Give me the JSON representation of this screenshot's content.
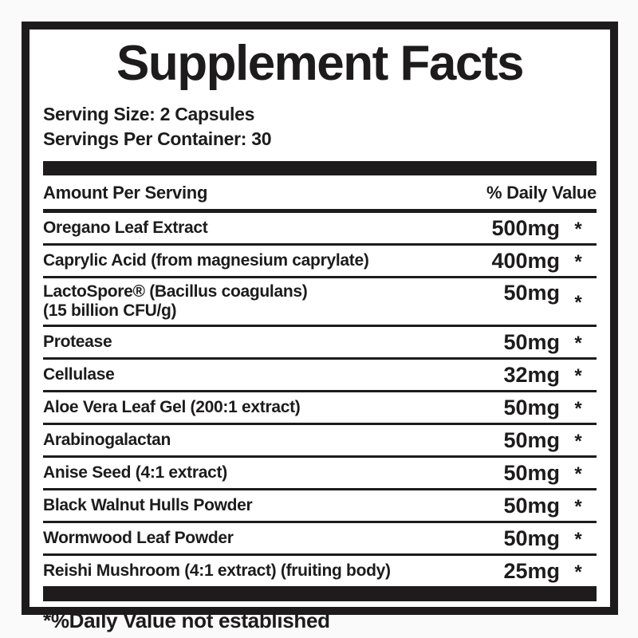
{
  "label": {
    "title": "Supplement Facts",
    "serving_size": "Serving Size: 2 Capsules",
    "servings_per_container": "Servings Per Container: 30",
    "header": {
      "left": "Amount Per Serving",
      "right": "% Daily Value"
    },
    "rows": [
      {
        "name": "Oregano Leaf Extract",
        "name2": "",
        "amount": "500mg",
        "dv": "*"
      },
      {
        "name": "Caprylic Acid (from magnesium caprylate)",
        "name2": "",
        "amount": "400mg",
        "dv": "*"
      },
      {
        "name": "LactoSpore® (Bacillus coagulans)",
        "name2": "(15 billion CFU/g)",
        "amount": "50mg",
        "dv": "*"
      },
      {
        "name": "Protease",
        "name2": "",
        "amount": "50mg",
        "dv": "*"
      },
      {
        "name": "Cellulase",
        "name2": "",
        "amount": "32mg",
        "dv": "*"
      },
      {
        "name": "Aloe Vera Leaf Gel (200:1 extract)",
        "name2": "",
        "amount": "50mg",
        "dv": "*"
      },
      {
        "name": "Arabinogalactan",
        "name2": "",
        "amount": "50mg",
        "dv": "*"
      },
      {
        "name": "Anise Seed (4:1 extract)",
        "name2": "",
        "amount": "50mg",
        "dv": "*"
      },
      {
        "name": "Black Walnut Hulls Powder",
        "name2": "",
        "amount": "50mg",
        "dv": "*"
      },
      {
        "name": "Wormwood Leaf Powder",
        "name2": "",
        "amount": "50mg",
        "dv": "*"
      },
      {
        "name": "Reishi Mushroom (4:1 extract) (fruiting body)",
        "name2": "",
        "amount": "25mg",
        "dv": "*"
      }
    ],
    "footnote": "*%Daily Value not established",
    "colors": {
      "ink": "#1d1b1b",
      "label_background": "#ffffff",
      "page_background": "#fafafa"
    }
  }
}
